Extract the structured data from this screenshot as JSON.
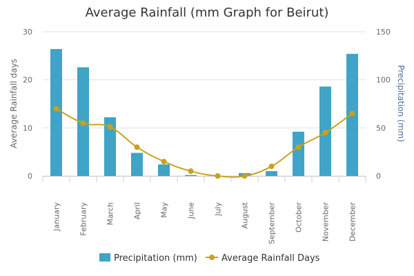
{
  "chart_data": {
    "type": "bar",
    "title": "Average Rainfall (mm Graph for Beirut)",
    "categories": [
      "January",
      "February",
      "March",
      "April",
      "May",
      "June",
      "July",
      "August",
      "September",
      "October",
      "November",
      "December"
    ],
    "series": [
      {
        "name": "Precipitation (mm)",
        "type": "bar",
        "axis": "right",
        "color": "#3fa4c5",
        "values": [
          132,
          113,
          61,
          24,
          12,
          1,
          0,
          3,
          5,
          46,
          93,
          127
        ]
      },
      {
        "name": "Average Rainfall Days",
        "type": "line",
        "axis": "left",
        "color": "#c8a21c",
        "values": [
          14,
          11,
          10.2,
          6,
          3,
          1,
          0,
          0,
          2,
          6,
          9,
          13
        ]
      }
    ],
    "y_left": {
      "label": "Average Rainfall days",
      "min": 0,
      "max": 30,
      "ticks": [
        0,
        10,
        20,
        30
      ]
    },
    "y_right": {
      "label": "Precipitation (mm)",
      "min": 0,
      "max": 150,
      "ticks": [
        0,
        50,
        100,
        150
      ]
    },
    "grid": true,
    "legend_position": "bottom"
  }
}
